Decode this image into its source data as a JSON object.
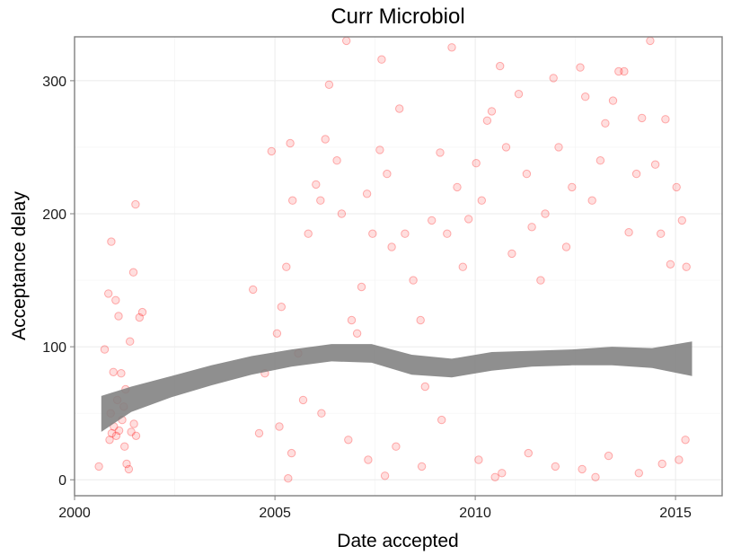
{
  "chart_data": {
    "type": "scatter",
    "title": "Curr Microbiol",
    "xlabel": "Date accepted",
    "ylabel": "Acceptance delay",
    "xlim": [
      "2000-01-01",
      "2016-03-01"
    ],
    "ylim": [
      -12,
      333
    ],
    "x_ticks": [
      {
        "value": "2000-01-01",
        "label": "2000"
      },
      {
        "value": "2005-01-01",
        "label": "2005"
      },
      {
        "value": "2010-01-01",
        "label": "2010"
      },
      {
        "value": "2015-01-01",
        "label": "2015"
      }
    ],
    "y_ticks": [
      {
        "value": 0,
        "label": "0"
      },
      {
        "value": 100,
        "label": "100"
      },
      {
        "value": 200,
        "label": "200"
      },
      {
        "value": 300,
        "label": "300"
      }
    ],
    "grid": true,
    "point_color": "#ff0000",
    "smooth_color": "#808080",
    "smooth": {
      "x": [
        "2000-09-01",
        "2001-06-01",
        "2002-06-01",
        "2003-06-01",
        "2004-06-01",
        "2005-06-01",
        "2006-06-01",
        "2007-06-01",
        "2008-06-01",
        "2009-06-01",
        "2010-06-01",
        "2011-06-01",
        "2012-06-01",
        "2013-06-01",
        "2014-06-01",
        "2015-06-01"
      ],
      "lower": [
        36,
        51,
        62,
        71,
        79,
        85,
        89,
        88,
        79,
        77,
        82,
        85,
        86,
        86,
        84,
        78
      ],
      "upper": [
        63,
        70,
        78,
        86,
        93,
        98,
        102,
        102,
        94,
        91,
        96,
        97,
        98,
        100,
        99,
        104
      ]
    },
    "points": [
      [
        "2000-08-10",
        10
      ],
      [
        "2000-10-01",
        98
      ],
      [
        "2000-11-05",
        140
      ],
      [
        "2000-12-01",
        179
      ],
      [
        "2000-12-20",
        81
      ],
      [
        "2001-01-10",
        135
      ],
      [
        "2001-02-05",
        123
      ],
      [
        "2001-03-01",
        80
      ],
      [
        "2001-04-10",
        68
      ],
      [
        "2001-05-20",
        104
      ],
      [
        "2001-06-20",
        156
      ],
      [
        "2001-07-10",
        207
      ],
      [
        "2001-08-15",
        122
      ],
      [
        "2001-09-10",
        126
      ],
      [
        "2000-11-15",
        30
      ],
      [
        "2000-12-05",
        35
      ],
      [
        "2000-12-25",
        40
      ],
      [
        "2001-01-15",
        33
      ],
      [
        "2001-02-10",
        37
      ],
      [
        "2001-03-10",
        45
      ],
      [
        "2001-04-01",
        25
      ],
      [
        "2001-04-20",
        12
      ],
      [
        "2001-05-10",
        8
      ],
      [
        "2001-06-01",
        36
      ],
      [
        "2001-06-25",
        42
      ],
      [
        "2001-07-15",
        33
      ],
      [
        "2000-11-25",
        50
      ],
      [
        "2001-01-25",
        60
      ],
      [
        "2001-03-25",
        55
      ],
      [
        "2004-06-15",
        143
      ],
      [
        "2004-08-10",
        35
      ],
      [
        "2004-10-01",
        80
      ],
      [
        "2004-12-01",
        247
      ],
      [
        "2005-01-20",
        110
      ],
      [
        "2005-03-01",
        130
      ],
      [
        "2005-04-15",
        160
      ],
      [
        "2005-05-20",
        253
      ],
      [
        "2005-06-10",
        210
      ],
      [
        "2005-08-01",
        95
      ],
      [
        "2005-09-15",
        60
      ],
      [
        "2005-11-01",
        185
      ],
      [
        "2006-01-10",
        222
      ],
      [
        "2006-02-20",
        210
      ],
      [
        "2006-04-05",
        256
      ],
      [
        "2006-05-10",
        297
      ],
      [
        "2006-07-20",
        240
      ],
      [
        "2006-09-01",
        200
      ],
      [
        "2006-10-15",
        330
      ],
      [
        "2006-12-01",
        120
      ],
      [
        "2007-01-20",
        110
      ],
      [
        "2007-03-01",
        145
      ],
      [
        "2007-04-20",
        215
      ],
      [
        "2007-06-10",
        185
      ],
      [
        "2007-08-15",
        248
      ],
      [
        "2007-09-01",
        316
      ],
      [
        "2007-10-20",
        230
      ],
      [
        "2007-12-01",
        175
      ],
      [
        "2008-02-10",
        279
      ],
      [
        "2008-04-01",
        185
      ],
      [
        "2008-06-15",
        150
      ],
      [
        "2008-08-20",
        120
      ],
      [
        "2008-10-01",
        70
      ],
      [
        "2008-12-01",
        195
      ],
      [
        "2009-02-15",
        246
      ],
      [
        "2009-04-20",
        185
      ],
      [
        "2009-06-01",
        325
      ],
      [
        "2009-07-20",
        220
      ],
      [
        "2009-09-10",
        160
      ],
      [
        "2009-11-01",
        196
      ],
      [
        "2010-01-10",
        238
      ],
      [
        "2010-03-01",
        210
      ],
      [
        "2010-04-20",
        270
      ],
      [
        "2010-06-01",
        277
      ],
      [
        "2010-08-15",
        311
      ],
      [
        "2010-10-10",
        250
      ],
      [
        "2010-12-01",
        170
      ],
      [
        "2011-02-01",
        290
      ],
      [
        "2011-04-15",
        230
      ],
      [
        "2011-06-01",
        190
      ],
      [
        "2011-08-20",
        150
      ],
      [
        "2011-10-01",
        200
      ],
      [
        "2011-12-15",
        302
      ],
      [
        "2012-02-01",
        250
      ],
      [
        "2012-04-10",
        175
      ],
      [
        "2012-06-01",
        220
      ],
      [
        "2012-08-15",
        310
      ],
      [
        "2012-10-01",
        288
      ],
      [
        "2012-12-01",
        210
      ],
      [
        "2013-02-15",
        240
      ],
      [
        "2013-04-01",
        268
      ],
      [
        "2013-06-10",
        285
      ],
      [
        "2013-08-01",
        307
      ],
      [
        "2013-09-20",
        307
      ],
      [
        "2013-11-01",
        186
      ],
      [
        "2014-01-10",
        230
      ],
      [
        "2014-03-01",
        272
      ],
      [
        "2014-05-15",
        330
      ],
      [
        "2014-07-01",
        237
      ],
      [
        "2014-08-20",
        185
      ],
      [
        "2014-10-01",
        271
      ],
      [
        "2014-11-15",
        162
      ],
      [
        "2015-01-10",
        220
      ],
      [
        "2015-03-01",
        195
      ],
      [
        "2015-04-10",
        160
      ],
      [
        "2005-02-10",
        40
      ],
      [
        "2005-06-01",
        20
      ],
      [
        "2006-03-01",
        50
      ],
      [
        "2006-11-01",
        30
      ],
      [
        "2007-05-01",
        15
      ],
      [
        "2008-01-10",
        25
      ],
      [
        "2008-09-01",
        10
      ],
      [
        "2009-03-01",
        45
      ],
      [
        "2010-02-01",
        15
      ],
      [
        "2010-09-01",
        5
      ],
      [
        "2011-05-01",
        20
      ],
      [
        "2012-01-01",
        10
      ],
      [
        "2012-09-01",
        8
      ],
      [
        "2013-05-01",
        18
      ],
      [
        "2014-02-01",
        5
      ],
      [
        "2014-09-01",
        12
      ],
      [
        "2015-02-01",
        15
      ],
      [
        "2005-05-01",
        1
      ],
      [
        "2007-10-01",
        3
      ],
      [
        "2010-07-01",
        2
      ],
      [
        "2013-01-01",
        2
      ],
      [
        "2015-04-01",
        30
      ]
    ]
  }
}
